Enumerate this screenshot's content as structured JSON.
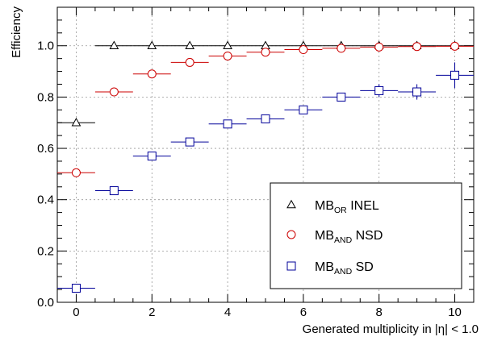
{
  "chart_data": {
    "type": "scatter",
    "xlabel": "Generated multiplicity in |η| < 1.0",
    "ylabel": "Efficiency",
    "xlim": [
      -0.5,
      10.5
    ],
    "ylim": [
      0.0,
      1.15
    ],
    "x_ticks": [
      0,
      2,
      4,
      6,
      8,
      10
    ],
    "x_tick_labels": [
      "0",
      "2",
      "4",
      "6",
      "8",
      "10"
    ],
    "y_ticks": [
      0.0,
      0.2,
      0.4,
      0.6,
      0.8,
      1.0
    ],
    "y_tick_labels": [
      "0.0",
      "0.2",
      "0.4",
      "0.6",
      "0.8",
      "1.0"
    ],
    "grid": true,
    "legend_position": "bottom-right",
    "x_bin_half_width": 0.5,
    "series": [
      {
        "name": "MB_OR INEL",
        "legend_main": "MB",
        "legend_sub": "OR",
        "legend_suffix": " INEL",
        "marker": "triangle",
        "color": "#000000",
        "x": [
          0,
          1,
          2,
          3,
          4,
          5,
          6,
          7,
          8,
          9,
          10
        ],
        "y": [
          0.7,
          1.0,
          1.0,
          1.0,
          1.0,
          1.0,
          1.0,
          1.0,
          1.0,
          1.0,
          1.0
        ],
        "y_err": [
          0.003,
          0.002,
          0.002,
          0.002,
          0.002,
          0.002,
          0.002,
          0.003,
          0.003,
          0.004,
          0.005
        ]
      },
      {
        "name": "MB_AND NSD",
        "legend_main": "MB",
        "legend_sub": "AND",
        "legend_suffix": " NSD",
        "marker": "circle",
        "color": "#cc0000",
        "x": [
          0,
          1,
          2,
          3,
          4,
          5,
          6,
          7,
          8,
          9,
          10
        ],
        "y": [
          0.505,
          0.82,
          0.89,
          0.935,
          0.96,
          0.975,
          0.985,
          0.99,
          0.995,
          0.997,
          0.998
        ],
        "y_err": [
          0.003,
          0.003,
          0.003,
          0.003,
          0.003,
          0.003,
          0.003,
          0.004,
          0.004,
          0.005,
          0.006
        ]
      },
      {
        "name": "MB_AND SD",
        "legend_main": "MB",
        "legend_sub": "AND",
        "legend_suffix": " SD",
        "marker": "square",
        "color": "#000099",
        "x": [
          0,
          1,
          2,
          3,
          4,
          5,
          6,
          7,
          8,
          9,
          10
        ],
        "y": [
          0.055,
          0.435,
          0.57,
          0.625,
          0.695,
          0.715,
          0.75,
          0.8,
          0.825,
          0.82,
          0.885
        ],
        "y_err": [
          0.005,
          0.008,
          0.008,
          0.01,
          0.01,
          0.01,
          0.012,
          0.015,
          0.025,
          0.03,
          0.05
        ]
      }
    ]
  }
}
